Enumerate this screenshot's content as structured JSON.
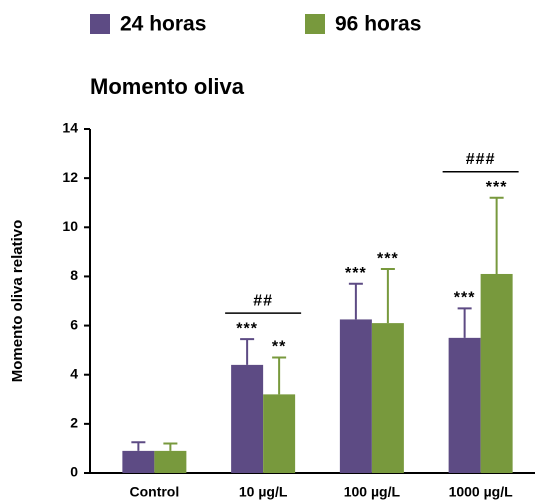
{
  "chart_data": {
    "type": "bar",
    "title": "Momento oliva",
    "y_label": "Momento oliva relativo",
    "categories": [
      "Control",
      "10 µg/L",
      "100 µg/L",
      "1000 µg/L"
    ],
    "series": [
      {
        "name": "24 horas",
        "color": "#5d4b84",
        "values": [
          0.9,
          4.4,
          6.25,
          5.5
        ],
        "errors": [
          0.35,
          1.05,
          1.45,
          1.2
        ],
        "significance": [
          null,
          "***",
          "***",
          "***"
        ]
      },
      {
        "name": "96 horas",
        "color": "#78993d",
        "values": [
          0.9,
          3.2,
          6.1,
          8.1
        ],
        "errors": [
          0.3,
          1.5,
          2.2,
          3.1
        ],
        "significance": [
          null,
          "**",
          "***",
          "***"
        ]
      }
    ],
    "group_labels": [
      null,
      "##",
      null,
      "###"
    ],
    "ylim": [
      0,
      14
    ],
    "yticks": [
      0,
      2,
      4,
      6,
      8,
      10,
      12,
      14
    ]
  }
}
